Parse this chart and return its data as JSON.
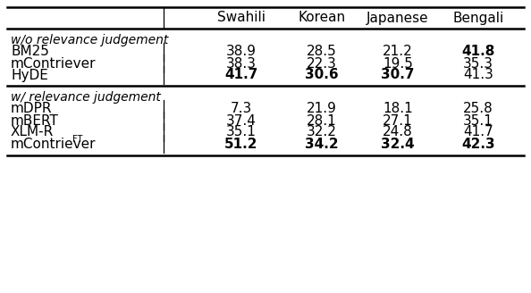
{
  "columns": [
    "",
    "Swahili",
    "Korean",
    "Japanese",
    "Bengali"
  ],
  "section1_label": "w/o relevance judgement",
  "section1_rows": [
    {
      "method": "BM25",
      "values": [
        "38.9",
        "28.5",
        "21.2",
        "41.8"
      ],
      "bold": [
        false,
        false,
        false,
        true
      ]
    },
    {
      "method": "mContriever",
      "values": [
        "38.3",
        "22.3",
        "19.5",
        "35.3"
      ],
      "bold": [
        false,
        false,
        false,
        false
      ]
    },
    {
      "method": "HyDE",
      "values": [
        "41.7",
        "30.6",
        "30.7",
        "41.3"
      ],
      "bold": [
        true,
        true,
        true,
        false
      ]
    }
  ],
  "section2_label": "w/ relevance judgement",
  "section2_rows": [
    {
      "method": "mDPR",
      "values": [
        "7.3",
        "21.9",
        "18.1",
        "25.8"
      ],
      "bold": [
        false,
        false,
        false,
        false
      ],
      "superscript": ""
    },
    {
      "method": "mBERT",
      "values": [
        "37.4",
        "28.1",
        "27.1",
        "35.1"
      ],
      "bold": [
        false,
        false,
        false,
        false
      ],
      "superscript": ""
    },
    {
      "method": "XLM-R",
      "values": [
        "35.1",
        "32.2",
        "24.8",
        "41.7"
      ],
      "bold": [
        false,
        false,
        false,
        false
      ],
      "superscript": ""
    },
    {
      "method": "mContriever",
      "values": [
        "51.2",
        "34.2",
        "32.4",
        "42.3"
      ],
      "bold": [
        true,
        true,
        true,
        true
      ],
      "superscript": "FT"
    }
  ],
  "bg_color": "#ffffff",
  "text_color": "#000000",
  "font_size": 11,
  "section_font_size": 10
}
